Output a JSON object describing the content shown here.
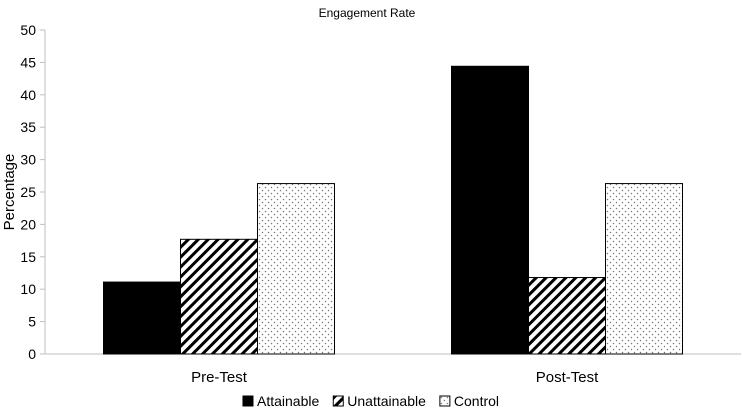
{
  "chart_data": {
    "type": "bar",
    "title": "Engagement Rate",
    "xlabel": "",
    "ylabel": "Percentage",
    "categories": [
      "Pre-Test",
      "Post-Test"
    ],
    "ylim": [
      0,
      50
    ],
    "yticks": [
      0,
      5,
      10,
      15,
      20,
      25,
      30,
      35,
      40,
      45,
      50
    ],
    "grid": false,
    "legend_position": "bottom",
    "series": [
      {
        "name": "Attainable",
        "values": [
          11.1,
          44.4
        ],
        "fill": "solid",
        "color": "#000000"
      },
      {
        "name": "Unattainable",
        "values": [
          17.7,
          11.8
        ],
        "fill": "diagonal-hatch",
        "color": "#000000"
      },
      {
        "name": "Control",
        "values": [
          26.3,
          26.3
        ],
        "fill": "dots",
        "color": "#888888"
      }
    ]
  }
}
